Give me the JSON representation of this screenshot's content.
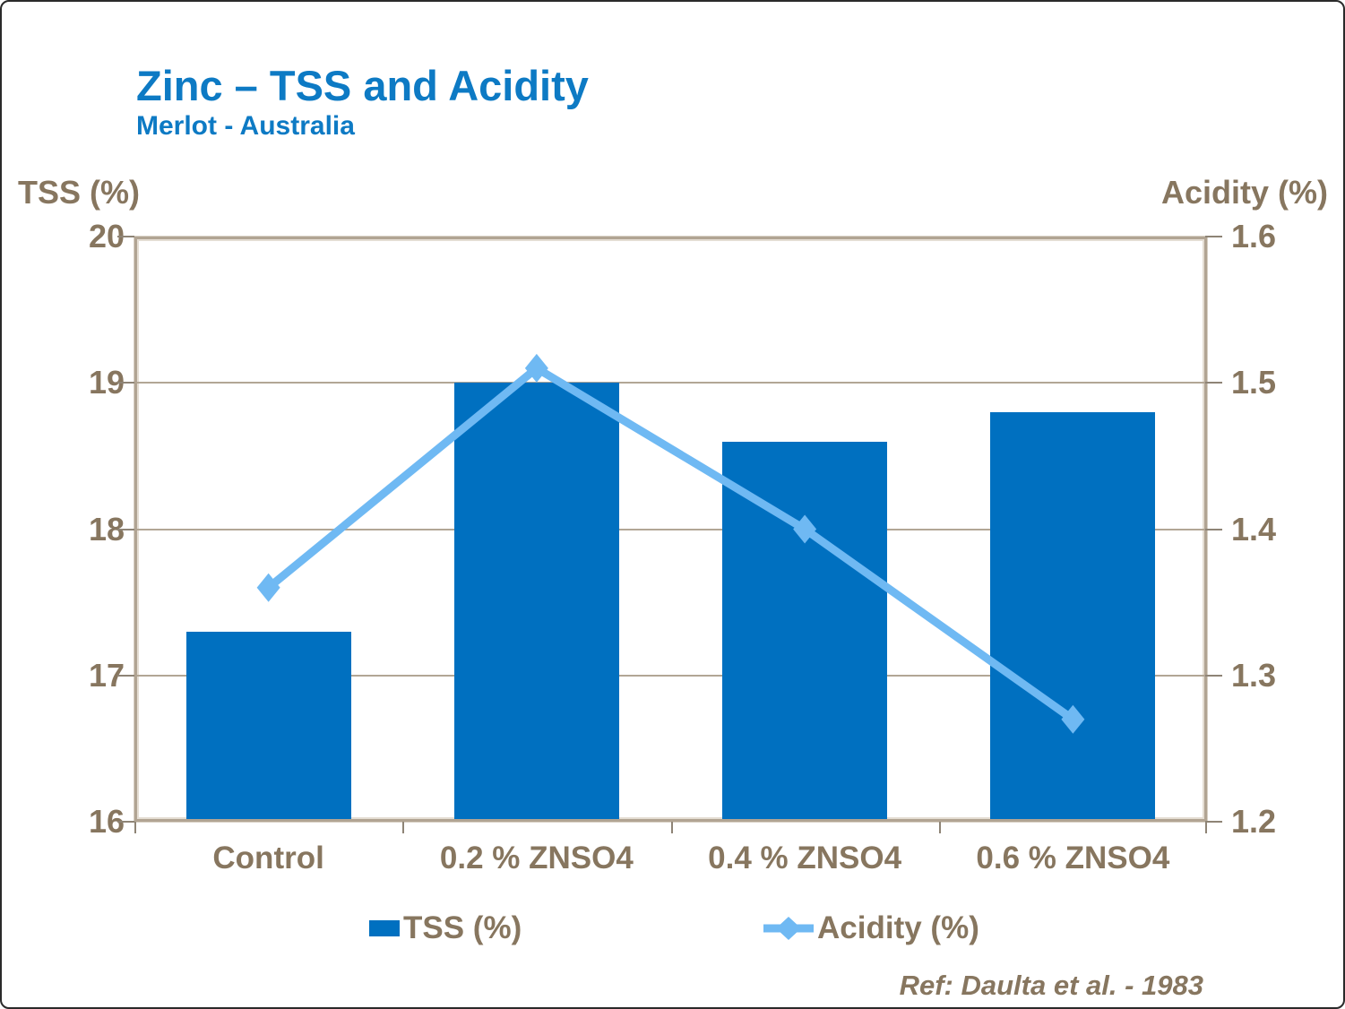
{
  "slide": {
    "title": "Zinc – TSS and Acidity",
    "subtitle": "Merlot - Australia",
    "reference": "Ref: Daulta et al. - 1983"
  },
  "chart_data": {
    "type": "combo",
    "categories": [
      "Control",
      "0.2 % ZNSO4",
      "0.4 % ZNSO4",
      "0.6 % ZNSO4"
    ],
    "series": [
      {
        "name": "TSS (%)",
        "type": "bar",
        "axis": "left",
        "color": "#0070c0",
        "values": [
          17.3,
          19.0,
          18.6,
          18.8
        ]
      },
      {
        "name": "Acidity (%)",
        "type": "line",
        "axis": "right",
        "color": "#6fb9f3",
        "marker": "diamond",
        "values": [
          1.36,
          1.51,
          1.4,
          1.27
        ]
      }
    ],
    "left_axis": {
      "title": "TSS (%)",
      "min": 16,
      "max": 20,
      "ticks": [
        20,
        19,
        18,
        17,
        16
      ]
    },
    "right_axis": {
      "title": "Acidity (%)",
      "min": 1.2,
      "max": 1.6,
      "ticks": [
        1.6,
        1.5,
        1.4,
        1.3,
        1.2
      ]
    },
    "gridlines": [
      19,
      18,
      17
    ],
    "grid": true,
    "legend_position": "bottom",
    "colors": {
      "title": "#0d7ac4",
      "axis_text": "#87765f",
      "frame": "#b1a493"
    }
  }
}
